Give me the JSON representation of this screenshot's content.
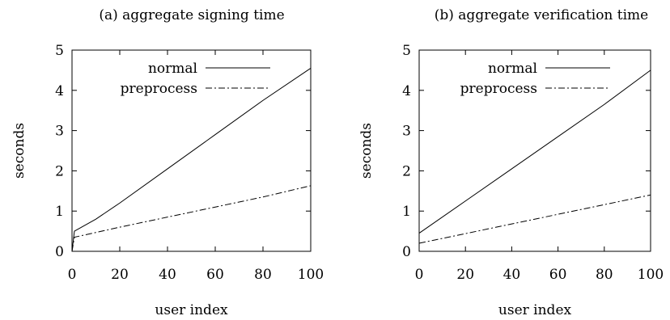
{
  "chart_data": [
    {
      "type": "line",
      "title": "(a) aggregate signing time",
      "xlabel": "user index",
      "ylabel": "seconds",
      "xlim": [
        0,
        100
      ],
      "ylim": [
        0,
        5
      ],
      "xticks": [
        "0",
        "20",
        "40",
        "60",
        "80",
        "100"
      ],
      "yticks": [
        "0",
        "1",
        "2",
        "3",
        "4",
        "5"
      ],
      "grid": false,
      "legend_position": "top-right",
      "series": [
        {
          "name": "normal",
          "style": "solid",
          "x": [
            0,
            1,
            10,
            20,
            40,
            60,
            80,
            100
          ],
          "y": [
            0.0,
            0.5,
            0.8,
            1.2,
            2.05,
            2.9,
            3.75,
            4.55
          ]
        },
        {
          "name": "preprocess",
          "style": "dashdot",
          "x": [
            0,
            1,
            20,
            40,
            60,
            80,
            100
          ],
          "y": [
            0.0,
            0.35,
            0.6,
            0.85,
            1.1,
            1.35,
            1.63
          ]
        }
      ]
    },
    {
      "type": "line",
      "title": "(b) aggregate verification time",
      "xlabel": "user index",
      "ylabel": "seconds",
      "xlim": [
        0,
        100
      ],
      "ylim": [
        0,
        5
      ],
      "xticks": [
        "0",
        "20",
        "40",
        "60",
        "80",
        "100"
      ],
      "yticks": [
        "0",
        "1",
        "2",
        "3",
        "4",
        "5"
      ],
      "grid": false,
      "legend_position": "top-right",
      "series": [
        {
          "name": "normal",
          "style": "solid",
          "x": [
            0,
            20,
            40,
            60,
            80,
            100
          ],
          "y": [
            0.45,
            1.25,
            2.05,
            2.85,
            3.65,
            4.5
          ]
        },
        {
          "name": "preprocess",
          "style": "dashdot",
          "x": [
            0,
            20,
            40,
            60,
            80,
            100
          ],
          "y": [
            0.2,
            0.44,
            0.68,
            0.92,
            1.16,
            1.4
          ]
        }
      ]
    }
  ]
}
